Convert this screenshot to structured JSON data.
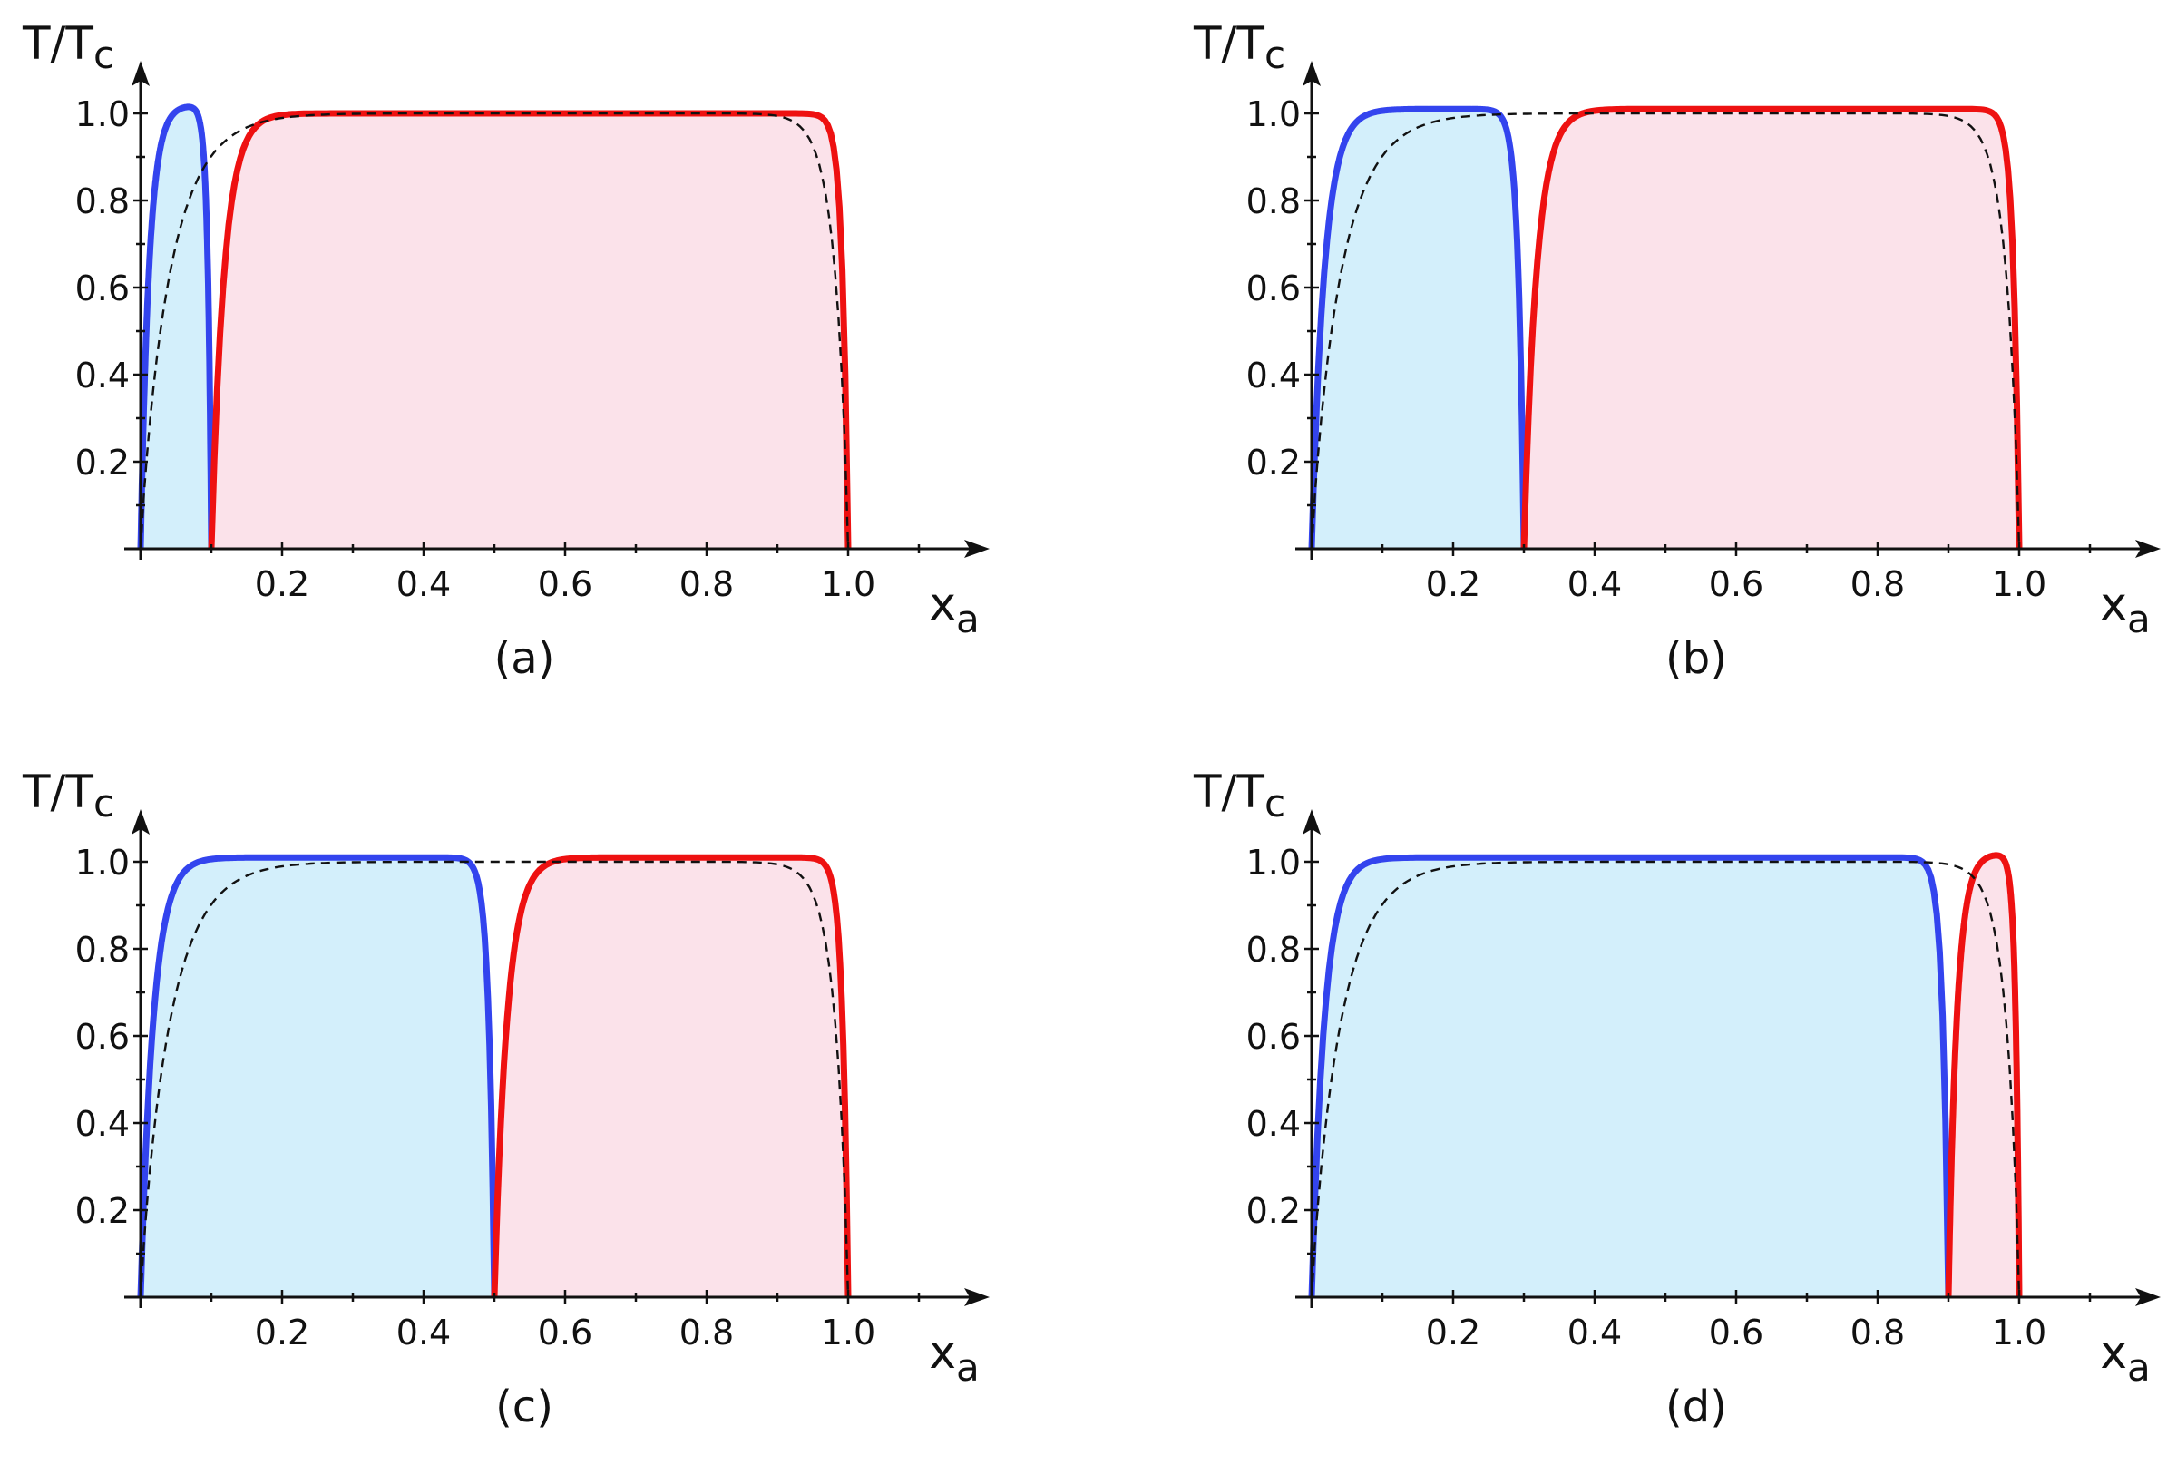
{
  "chart_data": [
    {
      "type": "area",
      "caption": "(a)",
      "ylabel": "T/T",
      "ylabel_sub": "c",
      "xlabel": "x",
      "xlabel_sub": "a",
      "xlim": [
        0,
        1.2
      ],
      "ylim": [
        0,
        1.1
      ],
      "xticks": [
        "0.2",
        "0.4",
        "0.6",
        "0.8",
        "1.0"
      ],
      "yticks": [
        "0.2",
        "0.4",
        "0.6",
        "0.8",
        "1.0"
      ],
      "boundary": 0.1,
      "series": [
        {
          "color": "#3344ee",
          "fill": "#d3effb",
          "domain": [
            0,
            0.1
          ],
          "peak": 1.02
        },
        {
          "color": "#ee1111",
          "fill": "#fbe2ea",
          "domain": [
            0.1,
            1.0
          ],
          "peak": 1.0
        },
        {
          "color": "#111111",
          "dashed": true,
          "domain": [
            0,
            1.0
          ],
          "peak": 1.0
        }
      ]
    },
    {
      "type": "area",
      "caption": "(b)",
      "ylabel": "T/T",
      "ylabel_sub": "c",
      "xlabel": "x",
      "xlabel_sub": "a",
      "xlim": [
        0,
        1.2
      ],
      "ylim": [
        0,
        1.1
      ],
      "xticks": [
        "0.2",
        "0.4",
        "0.6",
        "0.8",
        "1.0"
      ],
      "yticks": [
        "0.2",
        "0.4",
        "0.6",
        "0.8",
        "1.0"
      ],
      "boundary": 0.3,
      "series": [
        {
          "color": "#3344ee",
          "fill": "#d3effb",
          "domain": [
            0,
            0.3
          ],
          "peak": 1.01
        },
        {
          "color": "#ee1111",
          "fill": "#fbe2ea",
          "domain": [
            0.3,
            1.0
          ],
          "peak": 1.01
        },
        {
          "color": "#111111",
          "dashed": true,
          "domain": [
            0,
            1.0
          ],
          "peak": 1.0
        }
      ]
    },
    {
      "type": "area",
      "caption": "(c)",
      "ylabel": "T/T",
      "ylabel_sub": "c",
      "xlabel": "x",
      "xlabel_sub": "a",
      "xlim": [
        0,
        1.2
      ],
      "ylim": [
        0,
        1.1
      ],
      "xticks": [
        "0.2",
        "0.4",
        "0.6",
        "0.8",
        "1.0"
      ],
      "yticks": [
        "0.2",
        "0.4",
        "0.6",
        "0.8",
        "1.0"
      ],
      "boundary": 0.5,
      "series": [
        {
          "color": "#3344ee",
          "fill": "#d3effb",
          "domain": [
            0,
            0.5
          ],
          "peak": 1.01
        },
        {
          "color": "#ee1111",
          "fill": "#fbe2ea",
          "domain": [
            0.5,
            1.0
          ],
          "peak": 1.01
        },
        {
          "color": "#111111",
          "dashed": true,
          "domain": [
            0,
            1.0
          ],
          "peak": 1.0
        }
      ]
    },
    {
      "type": "area",
      "caption": "(d)",
      "ylabel": "T/T",
      "ylabel_sub": "c",
      "xlabel": "x",
      "xlabel_sub": "a",
      "xlim": [
        0,
        1.2
      ],
      "ylim": [
        0,
        1.1
      ],
      "xticks": [
        "0.2",
        "0.4",
        "0.6",
        "0.8",
        "1.0"
      ],
      "yticks": [
        "0.2",
        "0.4",
        "0.6",
        "0.8",
        "1.0"
      ],
      "boundary": 0.9,
      "series": [
        {
          "color": "#3344ee",
          "fill": "#d3effb",
          "domain": [
            0,
            0.9
          ],
          "peak": 1.01
        },
        {
          "color": "#ee1111",
          "fill": "#fbe2ea",
          "domain": [
            0.9,
            1.0
          ],
          "peak": 1.02
        },
        {
          "color": "#111111",
          "dashed": true,
          "domain": [
            0,
            1.0
          ],
          "peak": 1.0
        }
      ]
    }
  ]
}
